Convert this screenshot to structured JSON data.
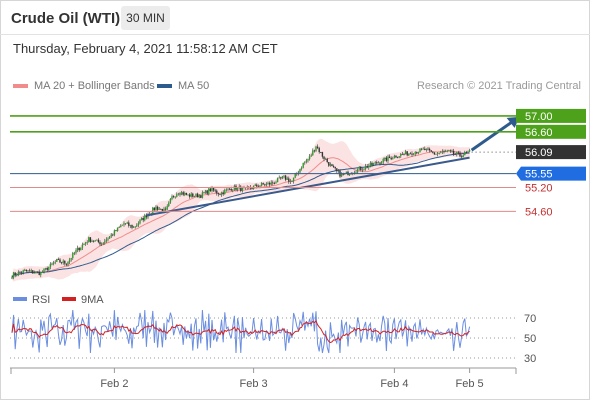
{
  "header": {
    "title": "Crude Oil (WTI)",
    "timeframe": "30 MIN",
    "datetime": "Thursday, February 4, 2021 11:58:12 AM CET"
  },
  "legend": {
    "ma20": {
      "label": "MA 20 + Bollinger Bands",
      "color": "#f08c8c"
    },
    "ma50": {
      "label": "MA 50",
      "color": "#2e5b8e"
    },
    "credit": "Research © 2021 Trading Central"
  },
  "rsi_legend": {
    "rsi": {
      "label": "RSI",
      "color": "#6b8ee0"
    },
    "ma9": {
      "label": "9MA",
      "color": "#d42020"
    }
  },
  "chart_data": {
    "type": "candlestick",
    "x_ticks": [
      "Feb 2",
      "Feb 3",
      "Feb 4",
      "Feb 5"
    ],
    "y_range": [
      53.0,
      57.4
    ],
    "levels": [
      {
        "label": "57.00",
        "value": 57.0,
        "style": "green-box"
      },
      {
        "label": "56.60",
        "value": 56.6,
        "style": "green-box"
      },
      {
        "label": "56.09",
        "value": 56.09,
        "style": "last-price"
      },
      {
        "label": "55.55",
        "value": 55.55,
        "style": "blue-box"
      },
      {
        "label": "55.20",
        "value": 55.2,
        "style": "red-text"
      },
      {
        "label": "54.60",
        "value": 54.6,
        "style": "red-text"
      }
    ],
    "price_path": [
      [
        0,
        53.0
      ],
      [
        8,
        53.1
      ],
      [
        18,
        53.05
      ],
      [
        28,
        53.35
      ],
      [
        34,
        53.3
      ],
      [
        40,
        53.6
      ],
      [
        48,
        53.9
      ],
      [
        56,
        53.8
      ],
      [
        62,
        54.0
      ],
      [
        70,
        54.3
      ],
      [
        76,
        54.2
      ],
      [
        84,
        54.5
      ],
      [
        90,
        54.7
      ],
      [
        96,
        54.6
      ],
      [
        100,
        54.95
      ],
      [
        104,
        55.1
      ],
      [
        110,
        55.0
      ],
      [
        118,
        55.0
      ],
      [
        124,
        55.15
      ],
      [
        130,
        55.05
      ],
      [
        138,
        55.2
      ],
      [
        146,
        55.15
      ],
      [
        154,
        55.25
      ],
      [
        162,
        55.3
      ],
      [
        170,
        55.45
      ],
      [
        175,
        55.35
      ],
      [
        178,
        55.55
      ],
      [
        182,
        55.8
      ],
      [
        186,
        55.95
      ],
      [
        190,
        56.25
      ],
      [
        194,
        56.0
      ],
      [
        200,
        55.7
      ],
      [
        206,
        55.5
      ],
      [
        212,
        55.6
      ],
      [
        220,
        55.7
      ],
      [
        230,
        55.85
      ],
      [
        240,
        56.0
      ],
      [
        246,
        56.05
      ],
      [
        252,
        56.1
      ],
      [
        258,
        56.15
      ],
      [
        264,
        56.05
      ],
      [
        272,
        56.1
      ],
      [
        280,
        56.0
      ],
      [
        286,
        56.09
      ]
    ],
    "annotations": {
      "trendline": [
        [
          84,
          54.5
        ],
        [
          286,
          55.95
        ]
      ],
      "arrow": [
        [
          286,
          56.09
        ],
        [
          306,
          57.0
        ]
      ]
    },
    "rsi": {
      "levels": [
        70,
        50,
        30
      ],
      "range": [
        20,
        80
      ]
    }
  }
}
